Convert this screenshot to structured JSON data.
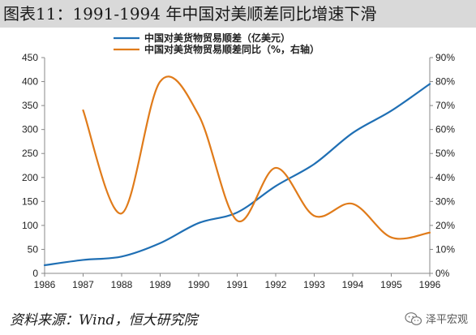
{
  "title": "图表11：1991-1994 年中国对美顺差同比增速下滑",
  "source": "资料来源：Wind，恒大研究院",
  "watermark": {
    "text": "泽平宏观",
    "icon": "wechat-icon"
  },
  "colors": {
    "series1": "#1f6fb4",
    "series2": "#e07b1a",
    "title_bg": "#d9d9d9"
  },
  "chart_data": {
    "type": "line",
    "x_ticks": [
      "1986",
      "1987",
      "1988",
      "1989",
      "1990",
      "1991",
      "1992",
      "1993",
      "1994",
      "1995",
      "1996"
    ],
    "xlim": [
      1986,
      1996
    ],
    "y_left": {
      "ticks": [
        "0",
        "50",
        "100",
        "150",
        "200",
        "250",
        "300",
        "350",
        "400",
        "450"
      ],
      "lim": [
        0,
        450
      ]
    },
    "y_right": {
      "ticks": [
        "0%",
        "10%",
        "20%",
        "30%",
        "40%",
        "50%",
        "60%",
        "70%",
        "80%",
        "90%"
      ],
      "lim": [
        0,
        90
      ]
    },
    "legend_position": "top-center",
    "grid": false,
    "series": [
      {
        "name": "中国对美货物贸易顺差（亿美元）",
        "axis": "left",
        "x": [
          1986,
          1987,
          1988,
          1989,
          1990,
          1991,
          1992,
          1993,
          1994,
          1995,
          1996
        ],
        "values": [
          17,
          28,
          35,
          63,
          105,
          127,
          182,
          228,
          293,
          339,
          395
        ]
      },
      {
        "name": "中国对美货物贸易顺差同比（%，右轴）",
        "axis": "right",
        "x": [
          1987,
          1988,
          1989,
          1990,
          1991,
          1992,
          1993,
          1994,
          1995,
          1996
        ],
        "values": [
          68,
          25,
          80,
          66,
          22,
          44,
          24,
          29,
          15,
          17
        ]
      }
    ]
  }
}
